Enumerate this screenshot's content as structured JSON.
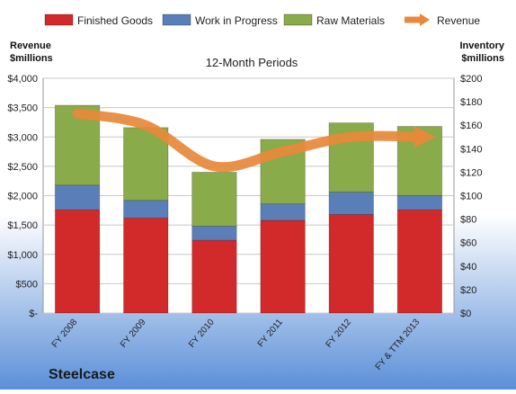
{
  "chart_data": {
    "type": "bar",
    "stacked": true,
    "title": "12-Month Periods",
    "categories": [
      "FY 2008",
      "FY 2009",
      "FY 2010",
      "FY 2011",
      "FY 2012",
      "FY & TTM 2013"
    ],
    "series": [
      {
        "name": "Finished Goods",
        "axis": "right",
        "color": "#d22a2a",
        "values": [
          88,
          81,
          62,
          79,
          84,
          88
        ]
      },
      {
        "name": "Work in Progress",
        "axis": "right",
        "color": "#5a7fb8",
        "values": [
          21,
          15,
          12,
          14,
          19,
          12
        ]
      },
      {
        "name": "Raw Materials",
        "axis": "right",
        "color": "#8aab4a",
        "values": [
          68,
          62,
          46,
          55,
          59,
          59
        ]
      },
      {
        "name": "Revenue",
        "axis": "left",
        "type": "line",
        "color": "#e8883a",
        "values": [
          3400,
          3200,
          2500,
          2750,
          3000,
          3000
        ]
      }
    ],
    "ylabel_left": "Revenue $millions",
    "ylabel_left_lines": [
      "Revenue",
      "$millions"
    ],
    "ylabel_right": "Inventory $millions",
    "ylabel_right_lines": [
      "Inventory",
      "$millions"
    ],
    "ylim_left": [
      0,
      4000
    ],
    "ylim_right": [
      0,
      200
    ],
    "yticks_left": [
      "$-",
      "$500",
      "$1,000",
      "$1,500",
      "$2,000",
      "$2,500",
      "$3,000",
      "$3,500",
      "$4,000"
    ],
    "yticks_right": [
      "$0",
      "$20",
      "$40",
      "$60",
      "$80",
      "$100",
      "$120",
      "$140",
      "$160",
      "$180",
      "$200"
    ],
    "grid": true,
    "legend": "top",
    "company": "Steelcase"
  }
}
